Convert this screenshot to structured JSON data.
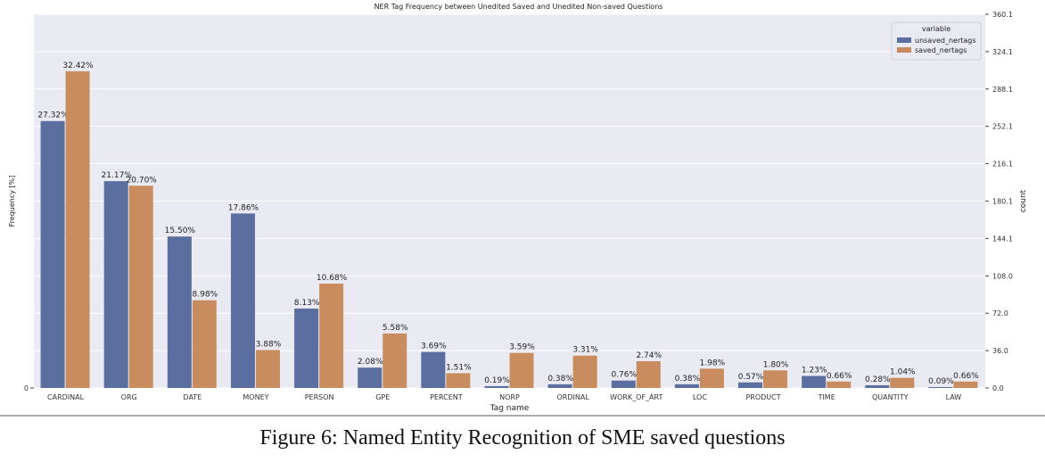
{
  "chart_data": {
    "type": "bar",
    "title": "NER Tag Frequency between Unedited Saved and Unedited Non-saved Questions",
    "xlabel": "Tag name",
    "ylabel": "Frequency [%]",
    "y2label": "count",
    "categories": [
      "CARDINAL",
      "ORG",
      "DATE",
      "MONEY",
      "PERSON",
      "GPE",
      "PERCENT",
      "NORP",
      "ORDINAL",
      "WORK_OF_ART",
      "LOC",
      "PRODUCT",
      "TIME",
      "QUANTITY",
      "LAW"
    ],
    "series": [
      {
        "name": "unsaved_nertags",
        "color": "#5a6ea0",
        "values": [
          27.32,
          21.17,
          15.5,
          17.86,
          8.13,
          2.08,
          3.69,
          0.19,
          0.38,
          0.76,
          0.38,
          0.57,
          1.23,
          0.28,
          0.09
        ],
        "labels": [
          "27.32%",
          "21.17%",
          "15.50%",
          "17.86%",
          "8.13%",
          "2.08%",
          "3.69%",
          "0.19%",
          "0.38%",
          "0.76%",
          "0.38%",
          "0.57%",
          "1.23%",
          "0.28%",
          "0.09%"
        ]
      },
      {
        "name": "saved_nertags",
        "color": "#c98c5e",
        "values": [
          32.42,
          20.7,
          8.98,
          3.88,
          10.68,
          5.58,
          1.51,
          3.59,
          3.31,
          2.74,
          1.98,
          1.8,
          0.66,
          1.04,
          0.66
        ],
        "labels": [
          "32.42%",
          "20.70%",
          "8.98%",
          "3.88%",
          "10.68%",
          "5.58%",
          "1.51%",
          "3.59%",
          "3.31%",
          "2.74%",
          "1.98%",
          "1.80%",
          "0.66%",
          "1.04%",
          "0.66%"
        ]
      }
    ],
    "legend": {
      "title": "variable",
      "placement": "top-right"
    },
    "left_ticks": [
      "0"
    ],
    "right_ticks": [
      "0.0",
      "36.0",
      "72.0",
      "108.0",
      "144.1",
      "180.1",
      "216.1",
      "252.1",
      "288.1",
      "324.1",
      "360.1"
    ],
    "ylim_right": [
      0,
      360.1
    ],
    "grid": true
  },
  "caption": "Figure 6: Named Entity Recognition of SME saved questions"
}
